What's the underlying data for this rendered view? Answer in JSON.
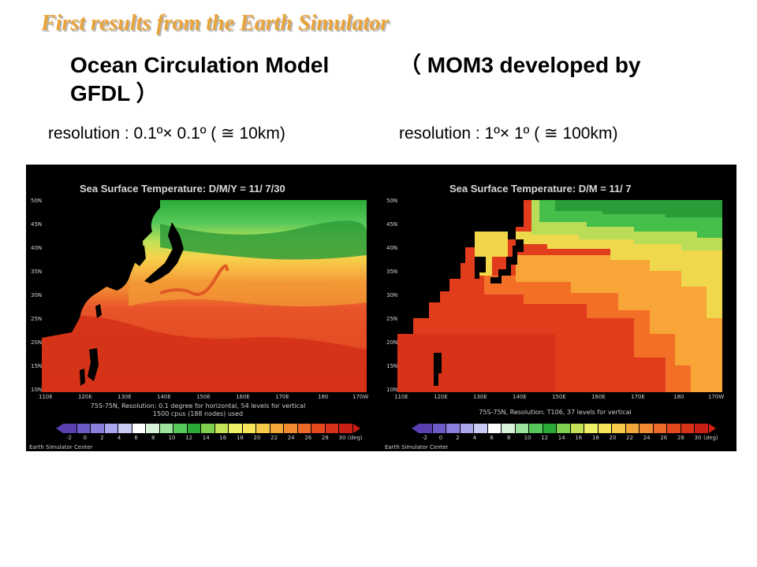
{
  "slide": {
    "title": "First results from the Earth Simulator",
    "heading_left": "Ocean Circulation Model",
    "heading_right": "（ MOM3 developed by",
    "heading_line2": "GFDL ）",
    "resolution_left": "resolution : 0.1º× 0.1º ( ≅ 10km)",
    "resolution_right": "resolution : 1º× 1º ( ≅ 100km)"
  },
  "panels": {
    "left": {
      "title": "Sea Surface Temperature: D/M/Y = 11/ 7/30",
      "caption1": "75S-75N, Resolution: 0.1 degree for horizontal, 54 levels for vertical",
      "caption2": "1500 cpus (188 nodes) used",
      "credit": "Earth Simulator Center"
    },
    "right": {
      "title": "Sea Surface Temperature: D/M = 11/ 7",
      "caption1": "75S-75N, Resolution: T106, 37 levels for vertical",
      "credit": "Earth Simulator Center"
    },
    "lat_ticks": [
      "50N",
      "45N",
      "40N",
      "35N",
      "30N",
      "25N",
      "20N",
      "15N",
      "10N"
    ],
    "lon_ticks": [
      "110E",
      "120E",
      "130E",
      "140E",
      "150E",
      "160E",
      "170E",
      "180",
      "170W"
    ],
    "colorbar_labels": [
      "-2",
      "0",
      "2",
      "4",
      "6",
      "8",
      "10",
      "12",
      "14",
      "16",
      "18",
      "20",
      "22",
      "24",
      "26",
      "28",
      "30"
    ],
    "colorbar_unit": "(deg)",
    "colorbar_colors": [
      "#5a3fb0",
      "#6d5cc8",
      "#8b7fdc",
      "#a9a6ee",
      "#c9c9f6",
      "#ffffff",
      "#d8f2d8",
      "#9de39d",
      "#56c95a",
      "#2aab38",
      "#7fd04c",
      "#c4e257",
      "#eef06a",
      "#f7e45a",
      "#f6c94b",
      "#f4a83c",
      "#f18a31",
      "#ec6a26",
      "#e44a1e",
      "#d63318",
      "#c91f14"
    ],
    "colors": {
      "title_orange": "#e8a33a",
      "land": "#000000",
      "warm": "#e5401b",
      "hot": "#cc2a14",
      "orange": "#f38a2c",
      "yellow": "#f6d24a",
      "green": "#3cbf4a"
    }
  }
}
